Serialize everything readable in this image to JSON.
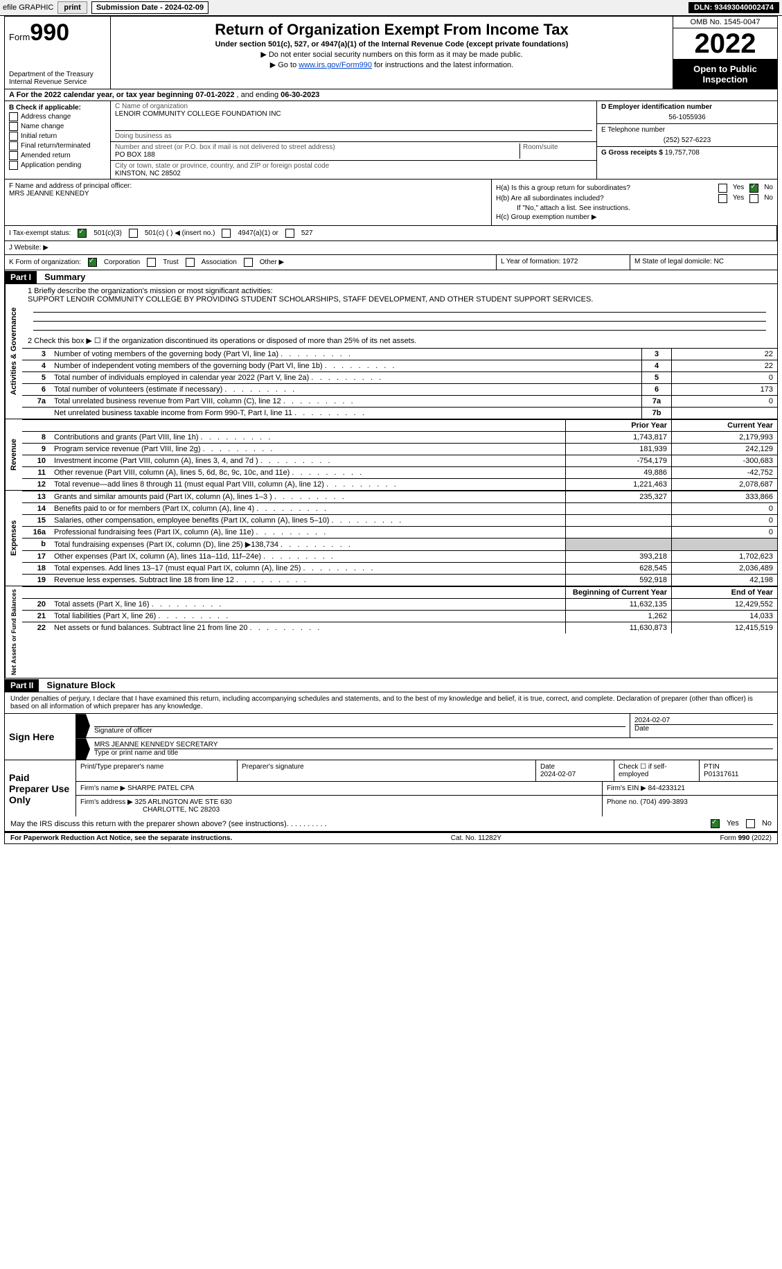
{
  "toolbar": {
    "efile": "efile GRAPHIC",
    "print": "print",
    "submission_label": "Submission Date - 2024-02-09",
    "dln": "DLN: 93493040002474"
  },
  "header": {
    "form_label": "Form",
    "form_number": "990",
    "dept": "Department of the Treasury\nInternal Revenue Service",
    "title": "Return of Organization Exempt From Income Tax",
    "subtitle": "Under section 501(c), 527, or 4947(a)(1) of the Internal Revenue Code (except private foundations)",
    "note1": "▶ Do not enter social security numbers on this form as it may be made public.",
    "note2_prefix": "▶ Go to ",
    "note2_link": "www.irs.gov/Form990",
    "note2_suffix": " for instructions and the latest information.",
    "omb": "OMB No. 1545-0047",
    "year": "2022",
    "open_insp": "Open to Public Inspection"
  },
  "row_a": {
    "prefix": "A For the 2022 calendar year, or tax year beginning ",
    "begin": "07-01-2022",
    "mid": "   , and ending ",
    "end": "06-30-2023"
  },
  "col_b": {
    "label": "B Check if applicable:",
    "items": [
      "Address change",
      "Name change",
      "Initial return",
      "Final return/terminated",
      "Amended return",
      "Application pending"
    ]
  },
  "col_c": {
    "name_label": "C Name of organization",
    "name": "LENOIR COMMUNITY COLLEGE FOUNDATION INC",
    "dba_label": "Doing business as",
    "dba": "",
    "street_label": "Number and street (or P.O. box if mail is not delivered to street address)",
    "room_label": "Room/suite",
    "street": "PO BOX 188",
    "city_label": "City or town, state or province, country, and ZIP or foreign postal code",
    "city": "KINSTON, NC  28502"
  },
  "col_d": {
    "ein_label": "D Employer identification number",
    "ein": "56-1055936",
    "phone_label": "E Telephone number",
    "phone": "(252) 527-6223",
    "gross_label": "G Gross receipts $ ",
    "gross": "19,757,708"
  },
  "row_f": {
    "label": "F Name and address of principal officer:",
    "name": "MRS JEANNE KENNEDY"
  },
  "row_h": {
    "ha": "H(a)  Is this a group return for subordinates?",
    "hb": "H(b)  Are all subordinates included?",
    "hb_note": "If \"No,\" attach a list. See instructions.",
    "hc": "H(c)  Group exemption number ▶",
    "yes": "Yes",
    "no": "No",
    "ha_answer_no": true
  },
  "row_i": {
    "label": "I  Tax-exempt status:",
    "opt1": "501(c)(3)",
    "opt2": "501(c) (  ) ◀ (insert no.)",
    "opt3": "4947(a)(1) or",
    "opt4": "527"
  },
  "row_j": {
    "label": "J  Website: ▶"
  },
  "row_k": {
    "label": "K Form of organization:",
    "opts": [
      "Corporation",
      "Trust",
      "Association",
      "Other ▶"
    ]
  },
  "row_l": {
    "label": "L Year of formation: ",
    "val": "1972"
  },
  "row_m": {
    "label": "M State of legal domicile: ",
    "val": "NC"
  },
  "part1": {
    "hdr": "Part I",
    "title": "Summary",
    "line1_label": "1  Briefly describe the organization's mission or most significant activities:",
    "line1_text": "SUPPORT LENOIR COMMUNITY COLLEGE BY PROVIDING STUDENT SCHOLARSHIPS, STAFF DEVELOPMENT, AND OTHER STUDENT SUPPORT SERVICES.",
    "line2": "2   Check this box ▶ ☐  if the organization discontinued its operations or disposed of more than 25% of its net assets.",
    "sections": {
      "activities": {
        "side": "Activities & Governance",
        "rows": [
          {
            "n": "3",
            "t": "Number of voting members of the governing body (Part VI, line 1a)",
            "box": "3",
            "v": "22"
          },
          {
            "n": "4",
            "t": "Number of independent voting members of the governing body (Part VI, line 1b)",
            "box": "4",
            "v": "22"
          },
          {
            "n": "5",
            "t": "Total number of individuals employed in calendar year 2022 (Part V, line 2a)",
            "box": "5",
            "v": "0"
          },
          {
            "n": "6",
            "t": "Total number of volunteers (estimate if necessary)",
            "box": "6",
            "v": "173"
          },
          {
            "n": "7a",
            "t": "Total unrelated business revenue from Part VIII, column (C), line 12",
            "box": "7a",
            "v": "0"
          },
          {
            "n": "",
            "t": "Net unrelated business taxable income from Form 990-T, Part I, line 11",
            "box": "7b",
            "v": ""
          }
        ]
      },
      "revenue": {
        "side": "Revenue",
        "hdr_prior": "Prior Year",
        "hdr_current": "Current Year",
        "rows": [
          {
            "n": "8",
            "t": "Contributions and grants (Part VIII, line 1h)",
            "p": "1,743,817",
            "c": "2,179,993"
          },
          {
            "n": "9",
            "t": "Program service revenue (Part VIII, line 2g)",
            "p": "181,939",
            "c": "242,129"
          },
          {
            "n": "10",
            "t": "Investment income (Part VIII, column (A), lines 3, 4, and 7d )",
            "p": "-754,179",
            "c": "-300,683"
          },
          {
            "n": "11",
            "t": "Other revenue (Part VIII, column (A), lines 5, 6d, 8c, 9c, 10c, and 11e)",
            "p": "49,886",
            "c": "-42,752"
          },
          {
            "n": "12",
            "t": "Total revenue—add lines 8 through 11 (must equal Part VIII, column (A), line 12)",
            "p": "1,221,463",
            "c": "2,078,687"
          }
        ]
      },
      "expenses": {
        "side": "Expenses",
        "rows": [
          {
            "n": "13",
            "t": "Grants and similar amounts paid (Part IX, column (A), lines 1–3 )",
            "p": "235,327",
            "c": "333,866"
          },
          {
            "n": "14",
            "t": "Benefits paid to or for members (Part IX, column (A), line 4)",
            "p": "",
            "c": "0"
          },
          {
            "n": "15",
            "t": "Salaries, other compensation, employee benefits (Part IX, column (A), lines 5–10)",
            "p": "",
            "c": "0"
          },
          {
            "n": "16a",
            "t": "Professional fundraising fees (Part IX, column (A), line 11e)",
            "p": "",
            "c": "0"
          },
          {
            "n": "b",
            "t": "Total fundraising expenses (Part IX, column (D), line 25) ▶138,734",
            "p": "shaded",
            "c": "shaded"
          },
          {
            "n": "17",
            "t": "Other expenses (Part IX, column (A), lines 11a–11d, 11f–24e)",
            "p": "393,218",
            "c": "1,702,623"
          },
          {
            "n": "18",
            "t": "Total expenses. Add lines 13–17 (must equal Part IX, column (A), line 25)",
            "p": "628,545",
            "c": "2,036,489"
          },
          {
            "n": "19",
            "t": "Revenue less expenses. Subtract line 18 from line 12",
            "p": "592,918",
            "c": "42,198"
          }
        ]
      },
      "netassets": {
        "side": "Net Assets or Fund Balances",
        "hdr_begin": "Beginning of Current Year",
        "hdr_end": "End of Year",
        "rows": [
          {
            "n": "20",
            "t": "Total assets (Part X, line 16)",
            "p": "11,632,135",
            "c": "12,429,552"
          },
          {
            "n": "21",
            "t": "Total liabilities (Part X, line 26)",
            "p": "1,262",
            "c": "14,033"
          },
          {
            "n": "22",
            "t": "Net assets or fund balances. Subtract line 21 from line 20",
            "p": "11,630,873",
            "c": "12,415,519"
          }
        ]
      }
    }
  },
  "part2": {
    "hdr": "Part II",
    "title": "Signature Block",
    "declaration": "Under penalties of perjury, I declare that I have examined this return, including accompanying schedules and statements, and to the best of my knowledge and belief, it is true, correct, and complete. Declaration of preparer (other than officer) is based on all information of which preparer has any knowledge.",
    "sign_here": "Sign Here",
    "sig_officer": "Signature of officer",
    "sig_date": "2024-02-07",
    "date_label": "Date",
    "officer_name": "MRS JEANNE KENNEDY  SECRETARY",
    "officer_name_label": "Type or print name and title",
    "paid": "Paid Preparer Use Only",
    "prep_name_label": "Print/Type preparer's name",
    "prep_sig_label": "Preparer's signature",
    "prep_date_label": "Date",
    "prep_date": "2024-02-07",
    "self_emp": "Check ☐ if self-employed",
    "ptin_label": "PTIN",
    "ptin": "P01317611",
    "firm_name_label": "Firm's name    ▶ ",
    "firm_name": "SHARPE PATEL CPA",
    "firm_ein_label": "Firm's EIN ▶ ",
    "firm_ein": "84-4233121",
    "firm_addr_label": "Firm's address ▶ ",
    "firm_addr1": "325 ARLINGTON AVE STE 630",
    "firm_addr2": "CHARLOTTE, NC  28203",
    "firm_phone_label": "Phone no. ",
    "firm_phone": "(704) 499-3893"
  },
  "may_irs": {
    "text": "May the IRS discuss this return with the preparer shown above? (see instructions)",
    "yes": "Yes",
    "no": "No"
  },
  "footer": {
    "left": "For Paperwork Reduction Act Notice, see the separate instructions.",
    "mid": "Cat. No. 11282Y",
    "right": "Form 990 (2022)"
  }
}
